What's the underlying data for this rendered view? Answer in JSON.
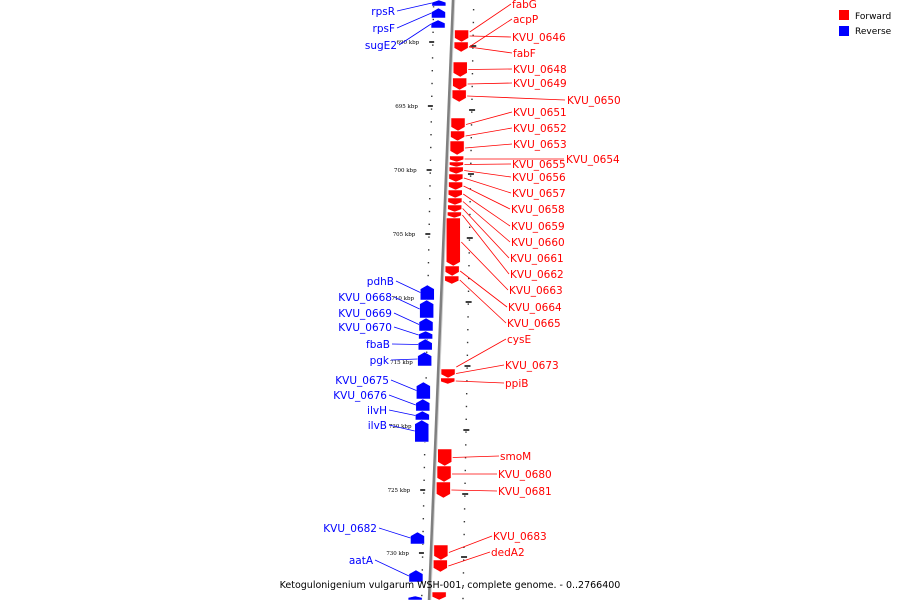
{
  "caption": "Ketogulonigenium vulgarum WSH-001, complete genome. - 0..2766400",
  "legend": [
    {
      "label": "Forward",
      "color": "#ff0000"
    },
    {
      "label": "Reverse",
      "color": "#0000ff"
    }
  ],
  "colors": {
    "forward": "#ff0000",
    "reverse": "#0000ff",
    "backbone": "#808080"
  },
  "ticks": [
    "690 kbp",
    "695 kbp",
    "700 kbp",
    "705 kbp",
    "710 kbp",
    "715 kbp",
    "720 kbp",
    "725 kbp",
    "730 kbp"
  ],
  "forward_genes": [
    "fabG",
    "acpP",
    "KVU_0646",
    "fabF",
    "KVU_0648",
    "KVU_0649",
    "KVU_0650",
    "KVU_0651",
    "KVU_0652",
    "KVU_0653",
    "KVU_0654",
    "KVU_0655",
    "KVU_0656",
    "KVU_0657",
    "KVU_0658",
    "KVU_0659",
    "KVU_0660",
    "KVU_0661",
    "KVU_0662",
    "KVU_0663",
    "KVU_0664",
    "KVU_0665",
    "cysE",
    "KVU_0673",
    "ppiB",
    "smoM",
    "KVU_0680",
    "KVU_0681",
    "KVU_0683",
    "dedA2"
  ],
  "reverse_genes": [
    "rpsR",
    "rpsF",
    "sugE2",
    "pdhB",
    "KVU_0668",
    "KVU_0669",
    "KVU_0670",
    "fbaB",
    "pgk",
    "KVU_0675",
    "KVU_0676",
    "ilvH",
    "ilvB",
    "KVU_0682",
    "aatA"
  ]
}
